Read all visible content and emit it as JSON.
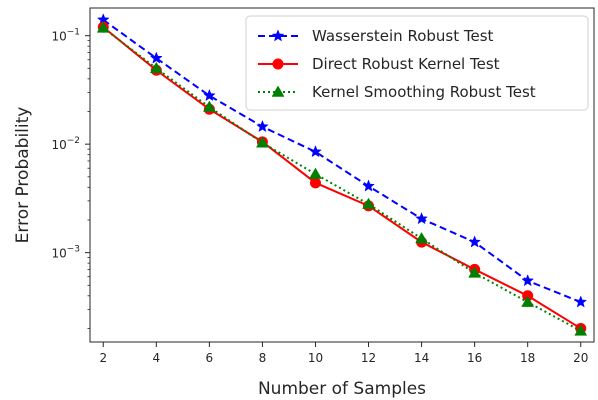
{
  "chart_data": {
    "type": "line",
    "title": "",
    "xlabel": "Number of Samples",
    "ylabel": "Error Probability",
    "yscale": "log",
    "xlim": [
      1.5,
      20.5
    ],
    "ylim": [
      0.00015,
      0.18
    ],
    "x": [
      2,
      4,
      6,
      8,
      10,
      12,
      14,
      16,
      18,
      20
    ],
    "x_ticks": [
      "2",
      "4",
      "6",
      "8",
      "10",
      "12",
      "14",
      "16",
      "18",
      "20"
    ],
    "y_ticks": [
      {
        "value": 0.1,
        "base": "10",
        "exp": "−1"
      },
      {
        "value": 0.01,
        "base": "10",
        "exp": "−2"
      },
      {
        "value": 0.001,
        "base": "10",
        "exp": "−3"
      }
    ],
    "grid": false,
    "legend_position": "top-right",
    "series": [
      {
        "name": "Wasserstein Robust Test",
        "color": "#0000ff",
        "line_style": "dashed",
        "marker": "star",
        "values": [
          0.14,
          0.062,
          0.028,
          0.0145,
          0.0085,
          0.0041,
          0.00205,
          0.00125,
          0.00055,
          0.00035
        ]
      },
      {
        "name": "Direct Robust Kernel Test",
        "color": "#ff0000",
        "line_style": "solid",
        "marker": "circle",
        "values": [
          0.12,
          0.048,
          0.021,
          0.0105,
          0.0044,
          0.0027,
          0.00125,
          0.0007,
          0.0004,
          0.0002
        ]
      },
      {
        "name": "Kernel Smoothing Robust Test",
        "color": "#008000",
        "line_style": "dotted",
        "marker": "triangle",
        "values": [
          0.118,
          0.05,
          0.022,
          0.0103,
          0.0053,
          0.0028,
          0.00135,
          0.00065,
          0.00035,
          0.00019
        ]
      }
    ]
  }
}
